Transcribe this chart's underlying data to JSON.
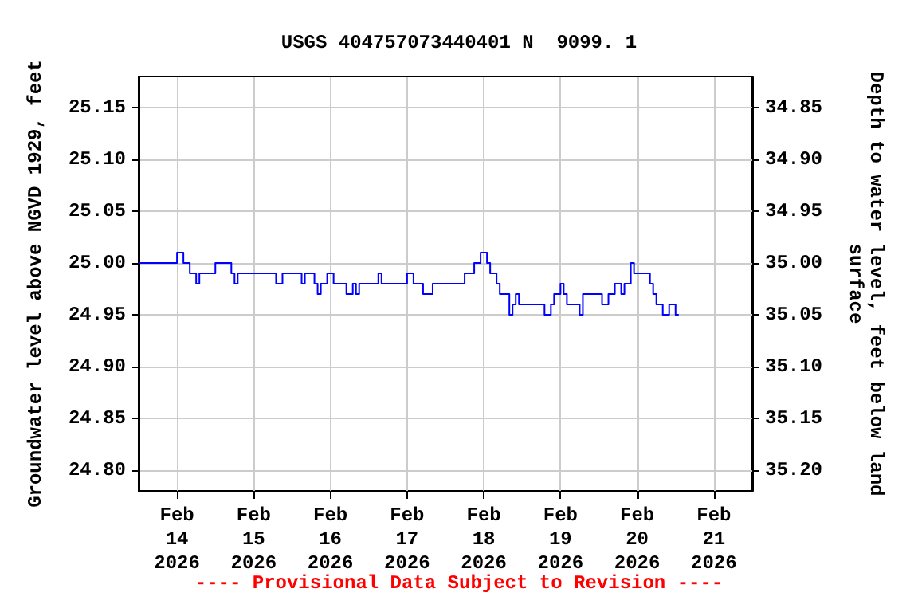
{
  "chart_data": {
    "type": "step",
    "title": "USGS 404757073440401 N  9099. 1",
    "ylabel": "Groundwater level above NGVD 1929, feet",
    "y2label": "Depth to water level, feet below land\nsurface",
    "annotations": [
      "---- Provisional Data Subject to Revision ----"
    ],
    "xlim": [
      "2026-02-13T12:00",
      "2026-02-21T12:00"
    ],
    "xticks": [
      {
        "value": "2026-02-14",
        "label": "Feb\n14\n2026"
      },
      {
        "value": "2026-02-15",
        "label": "Feb\n15\n2026"
      },
      {
        "value": "2026-02-16",
        "label": "Feb\n16\n2026"
      },
      {
        "value": "2026-02-17",
        "label": "Feb\n17\n2026"
      },
      {
        "value": "2026-02-18",
        "label": "Feb\n18\n2026"
      },
      {
        "value": "2026-02-19",
        "label": "Feb\n19\n2026"
      },
      {
        "value": "2026-02-20",
        "label": "Feb\n20\n2026"
      },
      {
        "value": "2026-02-21",
        "label": "Feb\n21\n2026"
      }
    ],
    "ylim": [
      24.78,
      25.18
    ],
    "yticks": [
      {
        "value": 24.8,
        "label": "24.80"
      },
      {
        "value": 24.85,
        "label": "24.85"
      },
      {
        "value": 24.9,
        "label": "24.90"
      },
      {
        "value": 24.95,
        "label": "24.95"
      },
      {
        "value": 25.0,
        "label": "25.00"
      },
      {
        "value": 25.05,
        "label": "25.05"
      },
      {
        "value": 25.1,
        "label": "25.10"
      },
      {
        "value": 25.15,
        "label": "25.15"
      }
    ],
    "y2lim": [
      35.22,
      34.82
    ],
    "y2ticks": [
      {
        "value": 34.85,
        "label": "34.85"
      },
      {
        "value": 34.9,
        "label": "34.90"
      },
      {
        "value": 34.95,
        "label": "34.95"
      },
      {
        "value": 35.0,
        "label": "35.00"
      },
      {
        "value": 35.05,
        "label": "35.05"
      },
      {
        "value": 35.1,
        "label": "35.10"
      },
      {
        "value": 35.15,
        "label": "35.15"
      },
      {
        "value": 35.2,
        "label": "35.20"
      }
    ],
    "grid": true,
    "marker": "none",
    "line_style": "solid",
    "series": [
      {
        "color": "#0000ff",
        "x": [
          "2026-02-13T12:00",
          "2026-02-14T00:00",
          "2026-02-14T02:00",
          "2026-02-14T04:00",
          "2026-02-14T06:00",
          "2026-02-14T07:00",
          "2026-02-14T12:00",
          "2026-02-14T17:00",
          "2026-02-14T18:00",
          "2026-02-14T19:00",
          "2026-02-14T21:00",
          "2026-02-15T07:00",
          "2026-02-15T09:00",
          "2026-02-15T15:00",
          "2026-02-15T16:00",
          "2026-02-15T19:00",
          "2026-02-15T20:00",
          "2026-02-15T21:00",
          "2026-02-15T23:00",
          "2026-02-16T01:00",
          "2026-02-16T05:00",
          "2026-02-16T07:00",
          "2026-02-16T08:00",
          "2026-02-16T09:00",
          "2026-02-16T15:00",
          "2026-02-16T16:00",
          "2026-02-17T00:00",
          "2026-02-17T02:00",
          "2026-02-17T05:00",
          "2026-02-17T08:00",
          "2026-02-17T18:00",
          "2026-02-17T21:00",
          "2026-02-17T23:00",
          "2026-02-18T01:00",
          "2026-02-18T02:00",
          "2026-02-18T04:00",
          "2026-02-18T05:00",
          "2026-02-18T08:00",
          "2026-02-18T09:00",
          "2026-02-18T10:00",
          "2026-02-18T11:00",
          "2026-02-18T19:00",
          "2026-02-18T21:00",
          "2026-02-18T22:00",
          "2026-02-19T00:00",
          "2026-02-19T01:00",
          "2026-02-19T02:00",
          "2026-02-19T06:00",
          "2026-02-19T07:00",
          "2026-02-19T13:00",
          "2026-02-19T15:00",
          "2026-02-19T17:00",
          "2026-02-19T19:00",
          "2026-02-19T20:00",
          "2026-02-19T22:00",
          "2026-02-19T23:00",
          "2026-02-20T04:00",
          "2026-02-20T05:00",
          "2026-02-20T06:00",
          "2026-02-20T08:00",
          "2026-02-20T10:00",
          "2026-02-20T12:00",
          "2026-02-20T13:00"
        ],
        "values": [
          25.0,
          25.01,
          25.0,
          24.99,
          24.98,
          24.99,
          25.0,
          24.99,
          24.98,
          24.99,
          24.99,
          24.98,
          24.99,
          24.98,
          24.99,
          24.98,
          24.97,
          24.98,
          24.99,
          24.98,
          24.97,
          24.98,
          24.97,
          24.98,
          24.99,
          24.98,
          24.99,
          24.98,
          24.97,
          24.98,
          24.99,
          25.0,
          25.01,
          25.0,
          24.99,
          24.98,
          24.97,
          24.95,
          24.96,
          24.97,
          24.96,
          24.95,
          24.96,
          24.97,
          24.98,
          24.97,
          24.96,
          24.95,
          24.97,
          24.96,
          24.97,
          24.98,
          24.97,
          24.98,
          25.0,
          24.99,
          24.98,
          24.97,
          24.96,
          24.95,
          24.96,
          24.95,
          24.95
        ]
      }
    ]
  }
}
